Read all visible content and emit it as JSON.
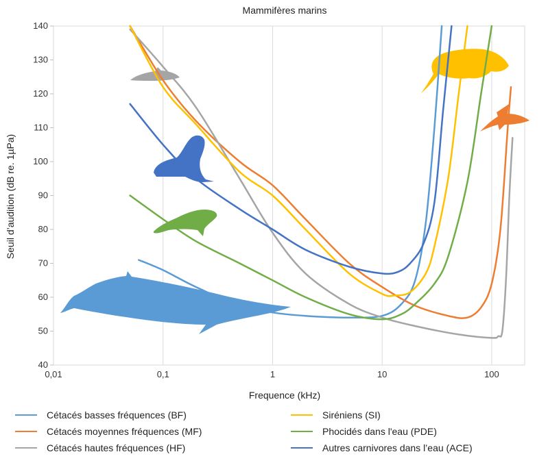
{
  "chart_data": {
    "type": "line",
    "title": "Mammifères marins",
    "xlabel": "Frequence (kHz)",
    "ylabel": "Seuil d’audition (dB re. 1µPa)",
    "xscale": "log",
    "xlim": [
      0.01,
      200
    ],
    "ylim": [
      40,
      140
    ],
    "x_ticks": [
      0.01,
      0.1,
      1,
      10,
      100
    ],
    "x_tick_labels": [
      "0,01",
      "0,1",
      "1",
      "10",
      "100"
    ],
    "y_ticks": [
      40,
      50,
      60,
      70,
      80,
      90,
      100,
      110,
      120,
      130,
      140
    ],
    "y_tick_labels": [
      "40",
      "50",
      "60",
      "70",
      "80",
      "90",
      "100",
      "110",
      "120",
      "130",
      "140"
    ],
    "grid": "vertical",
    "legend_position": "bottom",
    "series": [
      {
        "name": "Cétacés basses fréquences (BF)",
        "color": "#5b9bd5",
        "points": [
          [
            0.06,
            71
          ],
          [
            0.1,
            68
          ],
          [
            0.2,
            63
          ],
          [
            0.5,
            57.5
          ],
          [
            1,
            55.5
          ],
          [
            2,
            54.5
          ],
          [
            5,
            54
          ],
          [
            10,
            54.5
          ],
          [
            15,
            58
          ],
          [
            20,
            65
          ],
          [
            25,
            82
          ],
          [
            30,
            110
          ],
          [
            35,
            140
          ]
        ]
      },
      {
        "name": "Cétacés moyennes fréquences  (MF)",
        "color": "#ed7d31",
        "points": [
          [
            0.05,
            140
          ],
          [
            0.1,
            124
          ],
          [
            0.2,
            112
          ],
          [
            0.5,
            100
          ],
          [
            1,
            93
          ],
          [
            2,
            83
          ],
          [
            5,
            70
          ],
          [
            10,
            63
          ],
          [
            20,
            57.5
          ],
          [
            40,
            54.5
          ],
          [
            60,
            54
          ],
          [
            80,
            57
          ],
          [
            100,
            64
          ],
          [
            120,
            80
          ],
          [
            140,
            110
          ],
          [
            150,
            122
          ]
        ]
      },
      {
        "name": "Cétacés hautes fréquences  (HF)",
        "color": "#a5a5a5",
        "points": [
          [
            0.05,
            139
          ],
          [
            0.1,
            128
          ],
          [
            0.2,
            116
          ],
          [
            0.5,
            95
          ],
          [
            1,
            79
          ],
          [
            2,
            67
          ],
          [
            5,
            58
          ],
          [
            10,
            54
          ],
          [
            20,
            51.5
          ],
          [
            50,
            49
          ],
          [
            100,
            48
          ],
          [
            115,
            48.5
          ],
          [
            125,
            50
          ],
          [
            135,
            65
          ],
          [
            145,
            90
          ],
          [
            155,
            107
          ]
        ]
      },
      {
        "name": "Siréniens (SI)",
        "color": "#ffc000",
        "points": [
          [
            0.05,
            140
          ],
          [
            0.1,
            122
          ],
          [
            0.2,
            111
          ],
          [
            0.5,
            97
          ],
          [
            1,
            90
          ],
          [
            2,
            80
          ],
          [
            5,
            67
          ],
          [
            10,
            61
          ],
          [
            13,
            60.5
          ],
          [
            18,
            61.5
          ],
          [
            25,
            67
          ],
          [
            30,
            75
          ],
          [
            40,
            95
          ],
          [
            50,
            120
          ],
          [
            60,
            140
          ]
        ]
      },
      {
        "name": "Phocidés dans l'eau (PDE)",
        "color": "#70ad47",
        "points": [
          [
            0.05,
            90
          ],
          [
            0.1,
            83
          ],
          [
            0.2,
            76.5
          ],
          [
            0.5,
            70
          ],
          [
            1,
            65
          ],
          [
            2,
            60
          ],
          [
            5,
            55
          ],
          [
            10,
            53.5
          ],
          [
            15,
            55
          ],
          [
            20,
            58
          ],
          [
            30,
            64
          ],
          [
            40,
            72
          ],
          [
            60,
            94
          ],
          [
            80,
            120
          ],
          [
            100,
            140
          ]
        ]
      },
      {
        "name": "Autres carnivores dans l’eau (ACE)",
        "color": "#4472c4",
        "points": [
          [
            0.05,
            117
          ],
          [
            0.1,
            105
          ],
          [
            0.2,
            95
          ],
          [
            0.5,
            86
          ],
          [
            1,
            80
          ],
          [
            2,
            74
          ],
          [
            5,
            69
          ],
          [
            10,
            67
          ],
          [
            14,
            67.5
          ],
          [
            18,
            70
          ],
          [
            24,
            76
          ],
          [
            30,
            88
          ],
          [
            36,
            115
          ],
          [
            43,
            140
          ]
        ]
      }
    ]
  },
  "legend": {
    "items": [
      {
        "label": "Cétacés basses fréquences (BF)",
        "color": "#5b9bd5"
      },
      {
        "label": "Siréniens (SI)",
        "color": "#ffc000"
      },
      {
        "label": "Cétacés moyennes fréquences  (MF)",
        "color": "#ed7d31"
      },
      {
        "label": "Phocidés dans l'eau (PDE)",
        "color": "#70ad47"
      },
      {
        "label": "Cétacés hautes fréquences  (HF)",
        "color": "#a5a5a5"
      },
      {
        "label": "Autres carnivores dans l’eau (ACE)",
        "color": "#4472c4"
      }
    ]
  },
  "illustrations": [
    {
      "name": "whale-silhouette",
      "color": "#5b9bd5"
    },
    {
      "name": "manatee-silhouette",
      "color": "#ffc000"
    },
    {
      "name": "dolphin-silhouette",
      "color": "#ed7d31"
    },
    {
      "name": "porpoise-silhouette",
      "color": "#a5a5a5"
    },
    {
      "name": "sea-lion-silhouette",
      "color": "#4472c4"
    },
    {
      "name": "seal-silhouette",
      "color": "#70ad47"
    }
  ]
}
